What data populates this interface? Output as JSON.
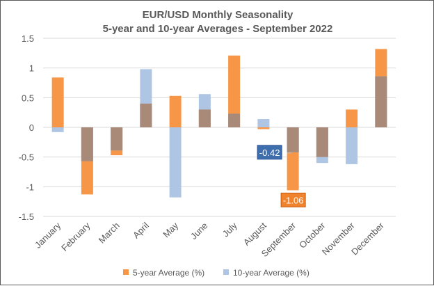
{
  "chart_data": {
    "type": "bar",
    "title": "EUR/USD Monthly Seasonality",
    "subtitle": "5-year and 10-year Averages - September 2022",
    "xlabel": "",
    "ylabel": "",
    "ylim": [
      -1.5,
      1.5
    ],
    "yticks": [
      "1.5",
      "1",
      "0.5",
      "0",
      "-0.5",
      "-1",
      "-1.5"
    ],
    "ytick_values": [
      1.5,
      1,
      0.5,
      0,
      -0.5,
      -1,
      -1.5
    ],
    "grid": true,
    "legend_position": "bottom",
    "categories": [
      "January",
      "February",
      "March",
      "April",
      "May",
      "June",
      "July",
      "August",
      "September",
      "October",
      "November",
      "December"
    ],
    "series": [
      {
        "name": "5-year Average (%)",
        "color": "#F79646",
        "values": [
          0.84,
          -1.13,
          -0.47,
          0.4,
          0.53,
          0.3,
          1.21,
          -0.03,
          -1.06,
          -0.5,
          0.3,
          1.32
        ]
      },
      {
        "name": "10-year Average (%)",
        "color": "#AEC5E3",
        "values": [
          -0.08,
          -0.57,
          -0.39,
          0.98,
          -1.18,
          0.56,
          0.23,
          0.14,
          -0.42,
          -0.6,
          -0.62,
          0.86
        ]
      }
    ],
    "overlap_color": "#A98A78",
    "annotations": [
      {
        "text": "-0.42",
        "category": "September",
        "series": "10-year Average (%)",
        "bg": "#3E6EAB"
      },
      {
        "text": "-1.06",
        "category": "September",
        "series": "5-year Average (%)",
        "bg": "#F0842E"
      }
    ]
  }
}
